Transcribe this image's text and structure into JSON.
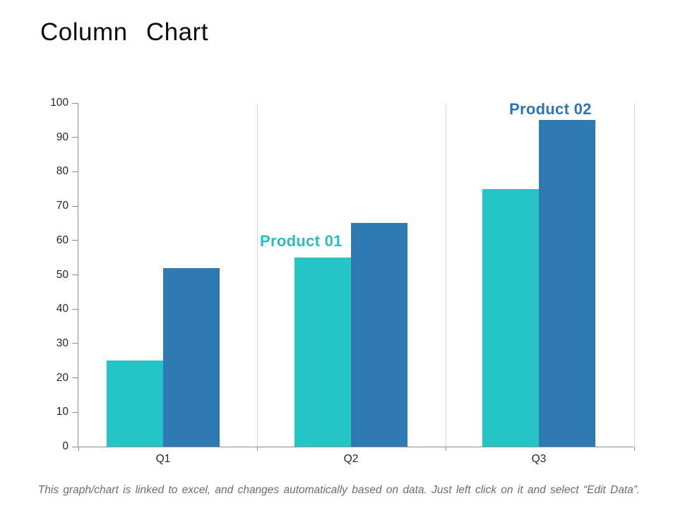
{
  "page": {
    "title": "Column Chart",
    "caption": "This graph/chart is linked to excel, and changes automatically based on data. Just left click on it and select “Edit Data”."
  },
  "chart_data": {
    "type": "bar",
    "title": "Column Chart",
    "categories": [
      "Q1",
      "Q2",
      "Q3"
    ],
    "series": [
      {
        "name": "Product 01",
        "values": [
          25,
          55,
          75
        ],
        "color": "#26c4c7",
        "label_color": "#2bbcc3"
      },
      {
        "name": "Product 02",
        "values": [
          52,
          65,
          95
        ],
        "color": "#2e79b2",
        "label_color": "#2e74ae"
      }
    ],
    "ylim": [
      0,
      100
    ],
    "yticks": [
      0,
      10,
      20,
      30,
      40,
      50,
      60,
      70,
      80,
      90,
      100
    ],
    "xlabel": "",
    "ylabel": "",
    "grid": "vertical category separator lines only, no horizontal gridlines",
    "legend_position": "series-name annotations above bars (Product 01 above Q2 teal bar, Product 02 above Q3 blue bar)"
  },
  "colors": {
    "background": "#ffffff",
    "axis_line": "#8c8c8c",
    "separator_line": "#d6d6d6",
    "tick_label": "#262626",
    "title_text": "#0d0d0d",
    "caption_text": "#6b6b6b"
  }
}
